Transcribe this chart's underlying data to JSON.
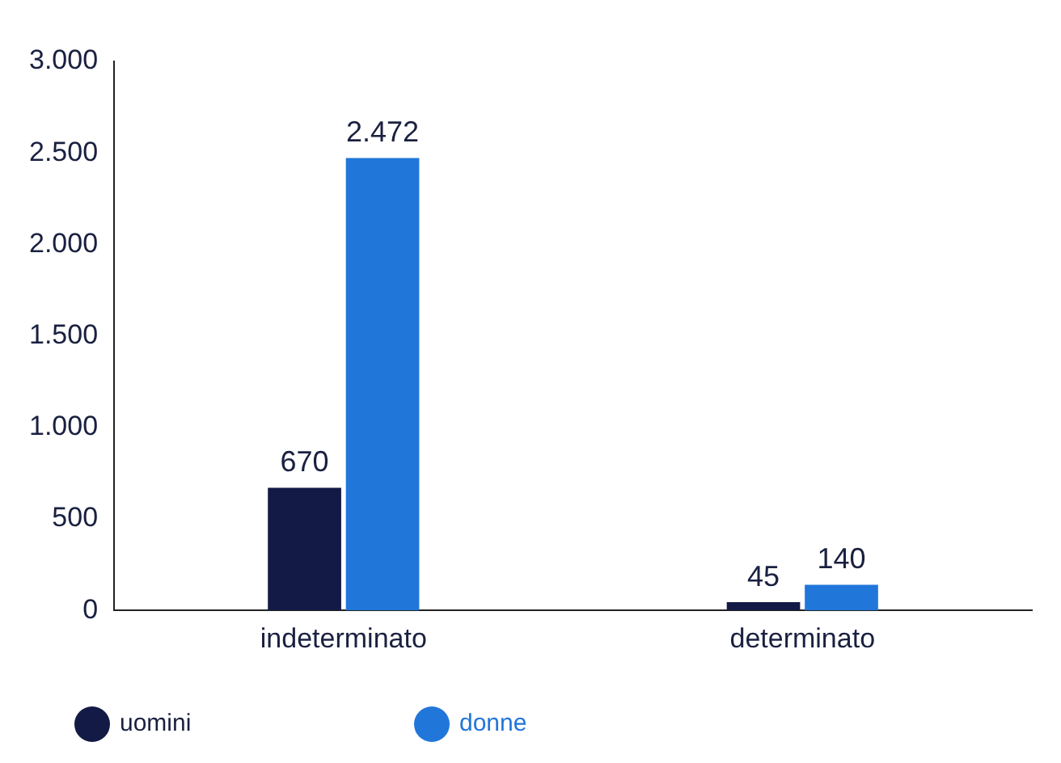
{
  "chart_data": {
    "type": "bar",
    "categories": [
      "indeterminato",
      "determinato"
    ],
    "series": [
      {
        "name": "uomini",
        "color": "#131a45",
        "values": [
          670,
          45
        ],
        "value_labels": [
          "670",
          "45"
        ]
      },
      {
        "name": "donne",
        "color": "#2176d9",
        "values": [
          2472,
          140
        ],
        "value_labels": [
          "2.472",
          "140"
        ]
      }
    ],
    "ylim": [
      0,
      3000
    ],
    "yticks": [
      {
        "value": 0,
        "label": "0"
      },
      {
        "value": 500,
        "label": "500"
      },
      {
        "value": 1000,
        "label": "1.000"
      },
      {
        "value": 1500,
        "label": "1.500"
      },
      {
        "value": 2000,
        "label": "2.000"
      },
      {
        "value": 2500,
        "label": "2.500"
      },
      {
        "value": 3000,
        "label": "3.000"
      }
    ],
    "grid": false,
    "legend": "bottom left"
  }
}
